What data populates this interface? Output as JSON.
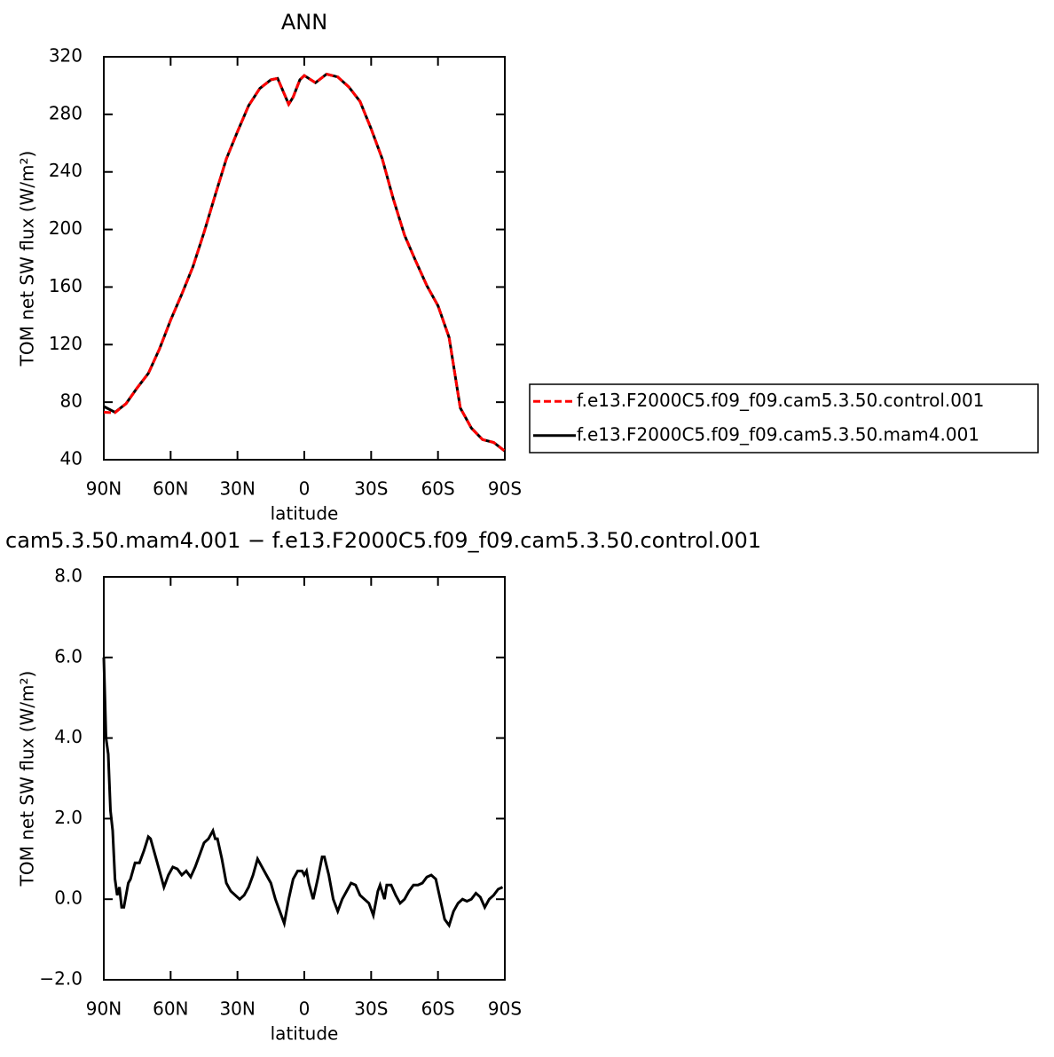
{
  "chart_data": [
    {
      "type": "line",
      "title": "ANN",
      "xlabel": "latitude",
      "ylabel": "TOM net SW flux (W/m²)",
      "x": [
        90,
        85,
        80,
        75,
        70,
        65,
        60,
        55,
        50,
        45,
        40,
        35,
        30,
        25,
        20,
        15,
        12,
        7,
        5,
        2,
        0,
        -5,
        -10,
        -15,
        -20,
        -25,
        -30,
        -35,
        -40,
        -45,
        -50,
        -55,
        -60,
        -65,
        -70,
        -75,
        -80,
        -85,
        -90
      ],
      "series": [
        {
          "name": "f.e13.F2000C5.f09_f09.cam5.3.50.control.001",
          "color": "#ff0000",
          "linestyle": "dashed",
          "values": [
            73,
            72.7,
            79,
            90,
            100,
            117,
            137,
            155,
            174,
            198,
            224,
            249,
            268,
            286,
            298,
            304,
            305,
            287,
            292,
            304,
            307,
            302,
            308,
            306,
            299,
            289,
            270,
            249,
            221,
            196,
            178,
            161,
            147,
            125,
            76,
            62,
            54,
            52,
            46
          ]
        },
        {
          "name": "f.e13.F2000C5.f09_f09.cam5.3.50.mam4.001",
          "color": "#000000",
          "linestyle": "solid",
          "values": [
            77,
            73,
            79,
            90,
            100,
            117,
            137,
            155,
            174,
            198,
            224,
            249,
            268,
            286,
            298,
            304,
            305,
            287,
            292,
            304,
            307,
            302,
            308,
            306,
            299,
            289,
            270,
            249,
            221,
            196,
            178,
            161,
            147,
            125,
            76,
            62,
            54,
            52,
            46
          ]
        }
      ],
      "xlim": [
        90,
        -90
      ],
      "xticks": [
        {
          "value": 90,
          "label": "90N"
        },
        {
          "value": 60,
          "label": "60N"
        },
        {
          "value": 30,
          "label": "30N"
        },
        0,
        {
          "value": -30,
          "label": "30S"
        },
        {
          "value": -60,
          "label": "60S"
        },
        {
          "value": -90,
          "label": "90S"
        }
      ],
      "ylim": [
        40,
        320
      ],
      "yticks": [
        40,
        80,
        120,
        160,
        200,
        240,
        280,
        320
      ],
      "legend": "right"
    },
    {
      "type": "line",
      "title": "cam5.3.50.mam4.001 − f.e13.F2000C5.f09_f09.cam5.3.50.control.001",
      "xlabel": "latitude",
      "ylabel": "TOM net SW flux (W/m²)",
      "x": [
        90,
        89,
        88,
        87,
        86,
        85,
        84,
        83,
        82,
        81,
        79,
        78,
        76,
        74,
        72,
        70,
        69,
        67,
        66,
        64,
        63,
        61,
        59,
        57,
        55,
        53,
        51,
        49,
        47,
        45,
        43,
        41,
        40,
        39,
        37,
        35,
        33,
        31,
        29,
        27,
        25,
        23,
        21,
        19,
        17,
        15,
        13,
        11,
        9,
        7,
        5,
        3,
        1,
        0,
        -1,
        -2,
        -4,
        -6,
        -8,
        -9,
        -11,
        -13,
        -15,
        -17,
        -19,
        -21,
        -23,
        -25,
        -27,
        -29,
        -31,
        -33,
        -34,
        -36,
        -37,
        -39,
        -41,
        -43,
        -45,
        -47,
        -49,
        -51,
        -53,
        -55,
        -57,
        -59,
        -61,
        -63,
        -65,
        -67,
        -69,
        -71,
        -73,
        -75,
        -77,
        -79,
        -81,
        -83,
        -85,
        -87,
        -89
      ],
      "values": [
        6.0,
        4.0,
        3.6,
        2.2,
        1.7,
        0.5,
        0.1,
        0.3,
        -0.2,
        -0.2,
        0.4,
        0.5,
        0.9,
        0.9,
        1.2,
        1.55,
        1.5,
        1.1,
        0.9,
        0.5,
        0.3,
        0.6,
        0.8,
        0.75,
        0.6,
        0.7,
        0.55,
        0.8,
        1.1,
        1.4,
        1.5,
        1.7,
        1.5,
        1.5,
        1.0,
        0.4,
        0.2,
        0.1,
        0.0,
        0.1,
        0.3,
        0.6,
        1.0,
        0.8,
        0.6,
        0.4,
        0.0,
        -0.3,
        -0.6,
        0.0,
        0.5,
        0.7,
        0.7,
        0.6,
        0.7,
        0.4,
        0.0,
        0.5,
        1.05,
        1.05,
        0.6,
        0.0,
        -0.3,
        0.0,
        0.2,
        0.4,
        0.35,
        0.1,
        0.0,
        -0.1,
        -0.4,
        0.2,
        0.35,
        0.0,
        0.35,
        0.35,
        0.1,
        -0.1,
        0.0,
        0.2,
        0.35,
        0.35,
        0.4,
        0.55,
        0.6,
        0.5,
        0.0,
        -0.5,
        -0.65,
        -0.3,
        -0.1,
        0.0,
        -0.05,
        0.0,
        0.15,
        0.05,
        -0.2,
        0.0,
        0.1,
        0.25,
        0.3
      ],
      "color": "#000000",
      "xlim": [
        90,
        -90
      ],
      "xticks": [
        {
          "value": 90,
          "label": "90N"
        },
        {
          "value": 60,
          "label": "60N"
        },
        {
          "value": 30,
          "label": "30N"
        },
        0,
        {
          "value": -30,
          "label": "30S"
        },
        {
          "value": -60,
          "label": "60S"
        },
        {
          "value": -90,
          "label": "90S"
        }
      ],
      "ylim": [
        -2,
        8
      ],
      "yticks": [
        {
          "value": -2,
          "label": "−2.0"
        },
        {
          "value": 0,
          "label": "0.0"
        },
        {
          "value": 2,
          "label": "2.0"
        },
        {
          "value": 4,
          "label": "4.0"
        },
        {
          "value": 6,
          "label": "6.0"
        },
        {
          "value": 8,
          "label": "8.0"
        }
      ]
    }
  ]
}
